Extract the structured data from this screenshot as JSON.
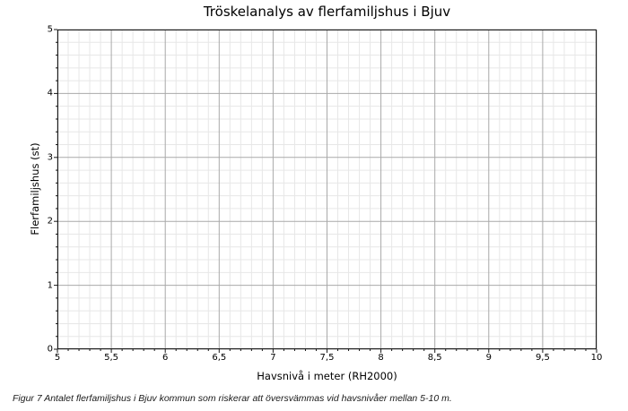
{
  "figure": {
    "caption": "Figur 7 Antalet flerfamiljshus i Bjuv kommun som riskerar att översvämmas vid havsnivåer mellan 5-10 m."
  },
  "chart_data": {
    "type": "line",
    "title": "Tröskelanalys av flerfamiljshus i Bjuv",
    "xlabel": "Havsnivå i meter (RH2000)",
    "ylabel": "Flerfamiljshus (st)",
    "xlim": [
      5,
      10
    ],
    "ylim": [
      0,
      5
    ],
    "x_major_ticks": [
      5,
      5.5,
      6,
      6.5,
      7,
      7.5,
      8,
      8.5,
      9,
      9.5,
      10
    ],
    "x_tick_labels": [
      "5",
      "5,5",
      "6",
      "6,5",
      "7",
      "7,5",
      "8",
      "8,5",
      "9",
      "9,5",
      "10"
    ],
    "y_major_ticks": [
      0,
      1,
      2,
      3,
      4,
      5
    ],
    "y_tick_labels": [
      "0",
      "1",
      "2",
      "3",
      "4",
      "5"
    ],
    "x_minor_step": 0.1,
    "y_minor_step": 0.2,
    "grid": {
      "major": true,
      "minor": true
    },
    "legend": "none",
    "series": [],
    "colors": {
      "background": "#ffffff",
      "major_grid": "#a9a9a9",
      "minor_grid": "#e7e7e7",
      "spine": "#1a1a1a",
      "text": "#000000"
    }
  }
}
